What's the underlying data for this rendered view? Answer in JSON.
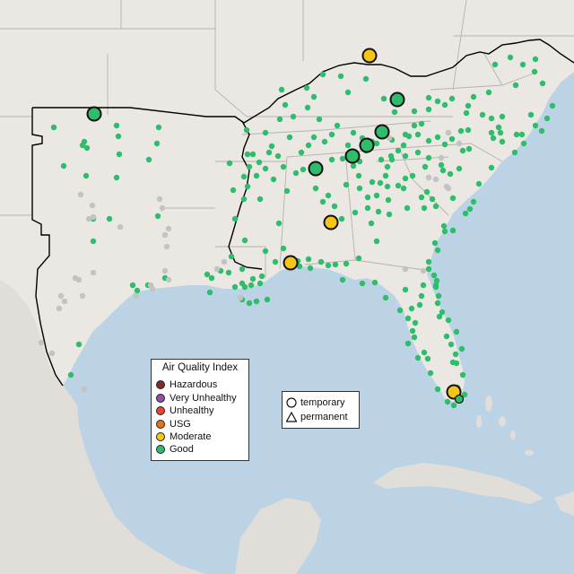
{
  "map": {
    "colors": {
      "water": "#bcd3e6",
      "land": "#ece8e3",
      "foreign_land": "#e3dfdb",
      "state_border": "#b8b4b0",
      "region_border": "#000000",
      "inactive_site": "#c3c3c3"
    }
  },
  "legend_aqi": {
    "title": "Air Quality Index",
    "items": [
      {
        "label": "Hazardous",
        "color": "#7e2c2a"
      },
      {
        "label": "Very Unhealthy",
        "color": "#8f4fa8"
      },
      {
        "label": "Unhealthy",
        "color": "#e5442e"
      },
      {
        "label": "USG",
        "color": "#e0751b"
      },
      {
        "label": "Moderate",
        "color": "#f5c518"
      },
      {
        "label": "Good",
        "color": "#2ebd6b"
      }
    ]
  },
  "legend_type": {
    "items": [
      {
        "label": "temporary",
        "icon": "circle-icon"
      },
      {
        "label": "permanent",
        "icon": "triangle-icon"
      }
    ]
  },
  "sites": {
    "temporary_large": [
      {
        "category": "Good",
        "lon": -97.55,
        "lat": 35.55
      },
      {
        "category": "Moderate",
        "lon": -84.35,
        "lat": 38.55
      },
      {
        "category": "Good",
        "lon": -82.7,
        "lat": 37.55
      },
      {
        "category": "Good",
        "lon": -83.45,
        "lat": 36.25
      },
      {
        "category": "Good",
        "lon": -84.2,
        "lat": 35.9
      },
      {
        "category": "Good",
        "lon": -84.9,
        "lat": 35.35
      },
      {
        "category": "Good",
        "lon": -86.8,
        "lat": 34.95
      },
      {
        "category": "Moderate",
        "lon": -86.3,
        "lat": 33.0
      },
      {
        "category": "Moderate",
        "lon": -88.05,
        "lat": 30.7
      },
      {
        "category": "Moderate",
        "lon": -80.35,
        "lat": 25.85
      }
    ],
    "permanent_small": [
      {
        "category": "Good",
        "lon": -80.25,
        "lat": 25.65
      }
    ]
  }
}
